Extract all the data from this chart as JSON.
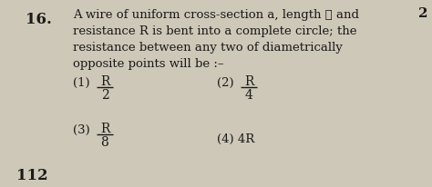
{
  "bg_color": "#cec8b8",
  "text_color": "#1a1a1a",
  "question_number": "16.",
  "question_text_line1": "A wire of uniform cross-section a, length ℓ and",
  "question_text_line2": "resistance R is bent into a complete circle; the",
  "question_text_line3": "resistance between any two of diametrically",
  "question_text_line4": "opposite points will be :–",
  "option1_prefix": "(1)",
  "option1_num": "R",
  "option1_den": "2",
  "option2_prefix": "(2)",
  "option2_num": "R",
  "option2_den": "4",
  "option3_prefix": "(3)",
  "option3_num": "R",
  "option3_den": "8",
  "option4": "(4) 4R",
  "page_number": "112",
  "corner_number": "2",
  "dpi": 100,
  "fig_w": 4.74,
  "fig_h": 2.07
}
